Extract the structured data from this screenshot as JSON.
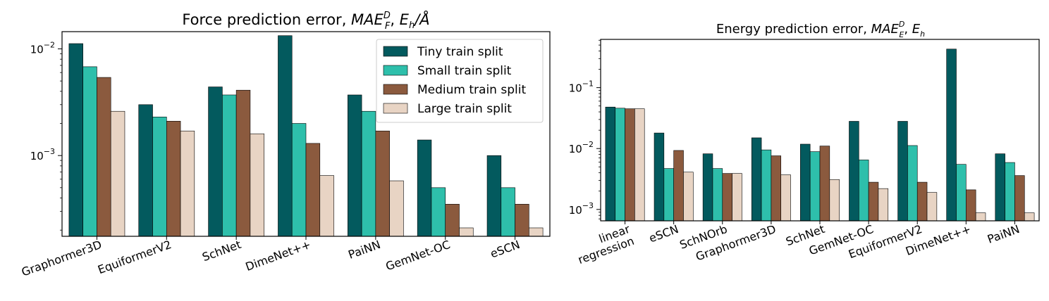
{
  "colors": {
    "tiny": "#035a5e",
    "small": "#2ebfab",
    "medium": "#8b5a3e",
    "large": "#e8d4c4",
    "axis": "#000000",
    "legend_border": "#cccccc"
  },
  "chart_data": [
    {
      "type": "bar",
      "title": "Force prediction error, MAE_F^D,  E_h/Å",
      "title_parts": {
        "main": "Force prediction error, ",
        "mae": "MAE",
        "sub": "F",
        "sup": "D",
        "unit_sep": ",  ",
        "unit": "E",
        "unit_sub": "h",
        "unit_tail": "/Å"
      },
      "scale": "log",
      "ylim": [
        0.000175,
        0.0145
      ],
      "yticks": [
        {
          "value": 0.01,
          "label": "10",
          "exp": "−2"
        },
        {
          "value": 0.001,
          "label": "10",
          "exp": "−3"
        }
      ],
      "categories": [
        "Graphormer3D",
        "EquiformerV2",
        "SchNet",
        "DimeNet++",
        "PaiNN",
        "GemNet-OC",
        "eSCN"
      ],
      "series": [
        {
          "name": "Tiny train split",
          "color_key": "tiny",
          "values": [
            0.0112,
            0.003,
            0.0044,
            0.0133,
            0.0037,
            0.0014,
            0.001
          ]
        },
        {
          "name": "Small train split",
          "color_key": "small",
          "values": [
            0.0068,
            0.0023,
            0.0037,
            0.002,
            0.0026,
            0.0005,
            0.0005
          ]
        },
        {
          "name": "Medium train split",
          "color_key": "medium",
          "values": [
            0.0054,
            0.0021,
            0.0041,
            0.0013,
            0.0017,
            0.00035,
            0.00035
          ]
        },
        {
          "name": "Large train split",
          "color_key": "large",
          "values": [
            0.0026,
            0.0017,
            0.0016,
            0.00065,
            0.00058,
            0.00021,
            0.00021
          ]
        }
      ],
      "legend": "top-right",
      "grid": false
    },
    {
      "type": "bar",
      "title": "Energy prediction error, MAE_E^D,  E_h",
      "title_parts": {
        "main": "Energy prediction error, ",
        "mae": "MAE",
        "sub": "E",
        "sup": "D",
        "unit_sep": ",  ",
        "unit": "E",
        "unit_sub": "h",
        "unit_tail": ""
      },
      "scale": "log",
      "ylim": [
        0.00065,
        0.62
      ],
      "yticks": [
        {
          "value": 0.1,
          "label": "10",
          "exp": "−1"
        },
        {
          "value": 0.01,
          "label": "10",
          "exp": "−2"
        },
        {
          "value": 0.001,
          "label": "10",
          "exp": "−3"
        }
      ],
      "categories": [
        "linear\nregression",
        "eSCN",
        "SchNOrb",
        "Graphormer3D",
        "SchNet",
        "GemNet-OC",
        "EquiformerV2",
        "DimeNet++",
        "PaiNN"
      ],
      "series": [
        {
          "name": "Tiny train split",
          "color_key": "tiny",
          "values": [
            0.048,
            0.018,
            0.0082,
            0.015,
            0.0118,
            0.028,
            0.028,
            0.43,
            0.0082
          ]
        },
        {
          "name": "Small train split",
          "color_key": "small",
          "values": [
            0.046,
            0.0047,
            0.0047,
            0.0095,
            0.0089,
            0.0065,
            0.0112,
            0.0055,
            0.0059
          ]
        },
        {
          "name": "Medium train split",
          "color_key": "medium",
          "values": [
            0.045,
            0.0093,
            0.0039,
            0.0076,
            0.011,
            0.0028,
            0.0028,
            0.0021,
            0.0036
          ]
        },
        {
          "name": "Large train split",
          "color_key": "large",
          "values": [
            0.045,
            0.0041,
            0.0039,
            0.0037,
            0.0031,
            0.0022,
            0.0019,
            0.00088,
            0.00088
          ]
        }
      ],
      "legend": "none",
      "grid": false
    }
  ]
}
